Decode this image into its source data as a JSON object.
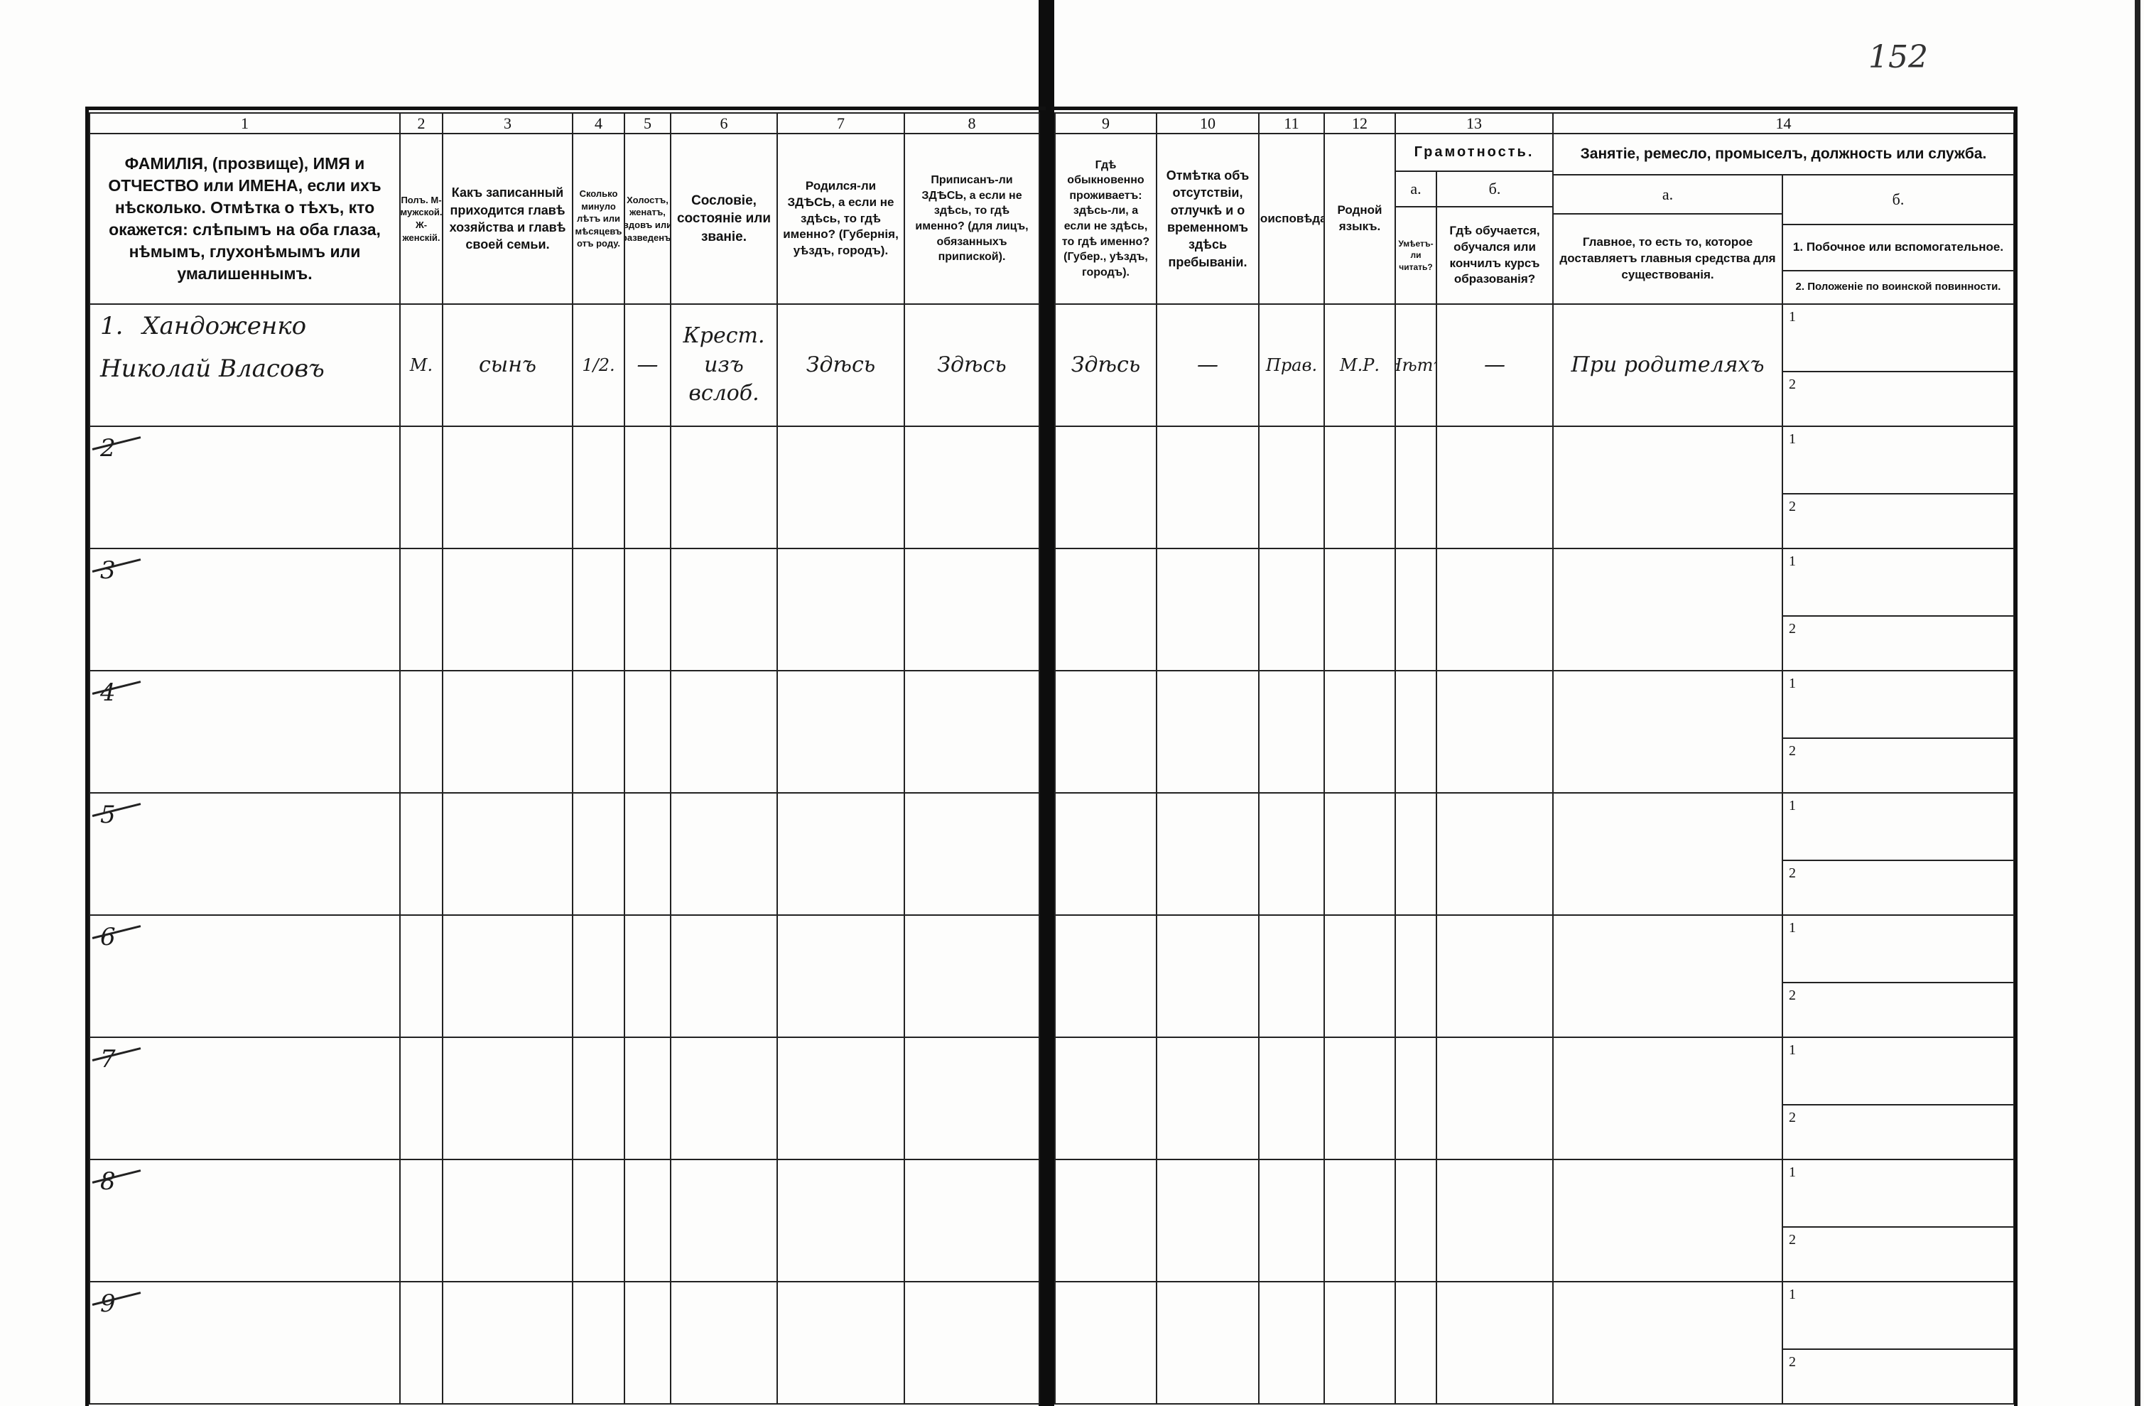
{
  "page_number": "152",
  "headers": {
    "c1": {
      "num": "1",
      "text": "ФАМИЛІЯ, (прозвище), ИМЯ и ОТЧЕСТВО или ИМЕНА, если ихъ нѣсколько. Отмѣтка о тѣхъ, кто окажется: слѣпымъ на оба глаза, нѣмымъ, глухонѣмымъ или умалишеннымъ."
    },
    "c2": {
      "num": "2",
      "text": "Полъ. М-мужской. Ж-женскій."
    },
    "c3": {
      "num": "3",
      "text": "Какъ записанный приходится главѣ хозяйства и главѣ своей семьи."
    },
    "c4": {
      "num": "4",
      "text": "Сколько минуло лѣтъ или мѣсяцевъ отъ роду."
    },
    "c5": {
      "num": "5",
      "text": "Холостъ, женатъ, вдовъ или разведенъ."
    },
    "c6": {
      "num": "6",
      "text": "Сословіе, состояніе или званіе."
    },
    "c7": {
      "num": "7",
      "text": "Родился-ли ЗДѢСЬ, а если не здѣсь, то гдѣ именно? (Губернія, уѣздъ, городъ)."
    },
    "c8": {
      "num": "8",
      "text": "Приписанъ-ли ЗДѢСЬ, а если не здѣсь, то гдѣ именно? (для лицъ, обязанныхъ припиской)."
    },
    "c9": {
      "num": "9",
      "text": "Гдѣ обыкновенно проживаетъ: здѣсь-ли, а если не здѣсь, то гдѣ именно? (Губер., уѣздъ, городъ)."
    },
    "c10": {
      "num": "10",
      "text": "Отмѣтка объ отсутствіи, отлучкѣ и о временномъ здѣсь пребываніи."
    },
    "c11": {
      "num": "11",
      "text": "Вѣроисповѣданіе."
    },
    "c12": {
      "num": "12",
      "text": "Родной языкъ."
    },
    "c13": {
      "num": "13",
      "title": "Грамотность.",
      "a_label": "а.",
      "a_text": "Умѣетъ-ли читать?",
      "b_label": "б.",
      "b_text": "Гдѣ обучается, обучался или кончилъ курсъ образованія?"
    },
    "c14": {
      "num": "14",
      "title": "Занятіе, ремесло, промыселъ, должность или служба.",
      "a_label": "а.",
      "a_text": "Главное, то есть то, которое доставляетъ главныя средства для существованія.",
      "b_label": "б.",
      "b1_text": "1. Побочное или вспомогательное.",
      "b2_text": "2. Положеніе по воинской повинности."
    }
  },
  "rows": [
    {
      "number": "1",
      "surname": "Хандоженко",
      "given_names": "Николай Власовъ",
      "sex": "М.",
      "relation": "сынъ",
      "age": "1/2.",
      "marital": "—",
      "estate": "Крест. изъ вслоб.",
      "birthplace": "Здѣсь",
      "registered": "Здѣсь",
      "residence": "Здѣсь",
      "absence": "—",
      "religion": "Прав.",
      "language": "М.Р.",
      "can_read": "Нѣтъ",
      "education": "—",
      "occupation_main": "При родителяхъ",
      "sub1": "1",
      "sub2": "2"
    },
    {
      "number": "2",
      "sub1": "1",
      "sub2": "2"
    },
    {
      "number": "3",
      "sub1": "1",
      "sub2": "2"
    },
    {
      "number": "4",
      "sub1": "1",
      "sub2": "2"
    },
    {
      "number": "5",
      "sub1": "1",
      "sub2": "2"
    },
    {
      "number": "6",
      "sub1": "1",
      "sub2": "2"
    },
    {
      "number": "7",
      "sub1": "1",
      "sub2": "2"
    },
    {
      "number": "8",
      "sub1": "1",
      "sub2": "2"
    },
    {
      "number": "9",
      "sub1": "1",
      "sub2": "2"
    }
  ]
}
